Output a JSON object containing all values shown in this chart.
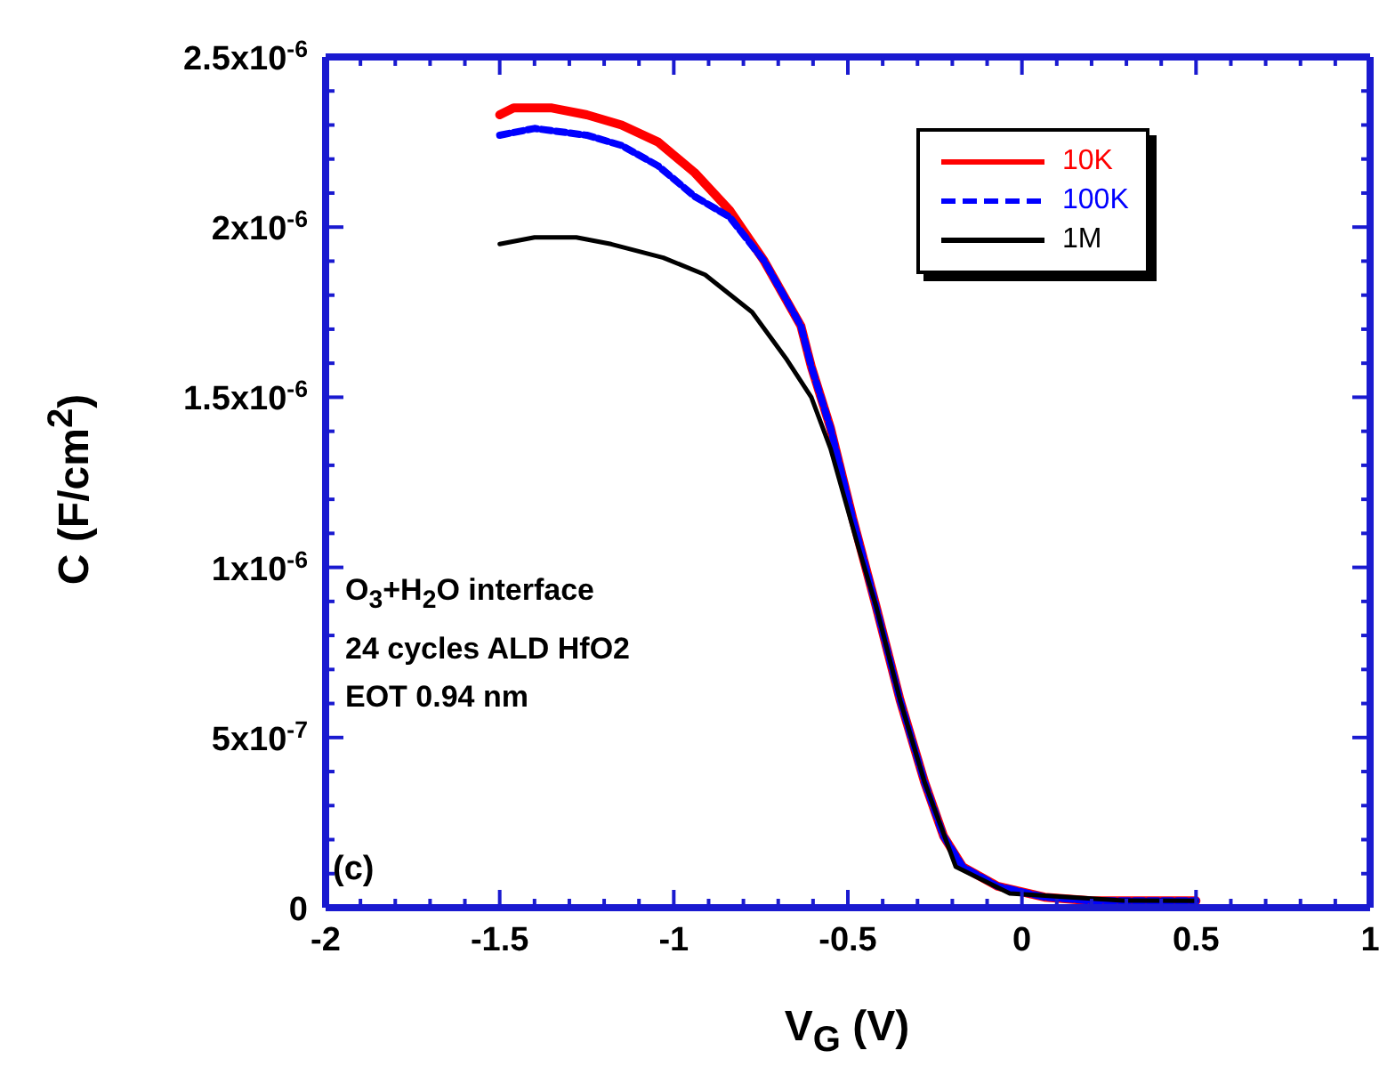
{
  "chart_data": {
    "type": "line",
    "xlabel": "V$_{G}$ (V)",
    "ylabel": "C (F/cm$^{2}$)",
    "xlim": [
      -2,
      1
    ],
    "ylim": [
      0,
      2.5e-06
    ],
    "xticks": [
      -2,
      {
        "value": -1.9,
        "label": null
      },
      {
        "value": -1.8,
        "label": null
      },
      {
        "value": -1.7,
        "label": null
      },
      {
        "value": -1.6,
        "label": null
      },
      -1.5,
      {
        "value": -1.4,
        "label": null
      },
      {
        "value": -1.3,
        "label": null
      },
      {
        "value": -1.2,
        "label": null
      },
      {
        "value": -1.1,
        "label": null
      },
      -1,
      {
        "value": -0.9,
        "label": null
      },
      {
        "value": -0.8,
        "label": null
      },
      {
        "value": -0.7,
        "label": null
      },
      {
        "value": -0.6,
        "label": null
      },
      -0.5,
      {
        "value": -0.4,
        "label": null
      },
      {
        "value": -0.3,
        "label": null
      },
      {
        "value": -0.2,
        "label": null
      },
      {
        "value": -0.1,
        "label": null
      },
      0,
      {
        "value": 0.1,
        "label": null
      },
      {
        "value": 0.2,
        "label": null
      },
      {
        "value": 0.3,
        "label": null
      },
      {
        "value": 0.4,
        "label": null
      },
      0.5,
      {
        "value": 0.6,
        "label": null
      },
      {
        "value": 0.7,
        "label": null
      },
      {
        "value": 0.8,
        "label": null
      },
      {
        "value": 0.9,
        "label": null
      },
      1
    ],
    "yticks": [
      0,
      {
        "value": 1e-07,
        "label": null
      },
      {
        "value": 2e-07,
        "label": null
      },
      {
        "value": 3e-07,
        "label": null
      },
      {
        "value": 4e-07,
        "label": null
      },
      {
        "value": 5e-07,
        "label": "5x10$^{-7}$"
      },
      {
        "value": 6e-07,
        "label": null
      },
      {
        "value": 7e-07,
        "label": null
      },
      {
        "value": 8e-07,
        "label": null
      },
      {
        "value": 9e-07,
        "label": null
      },
      {
        "value": 1e-06,
        "label": "1x10$^{-6}$"
      },
      {
        "value": 1.1e-06,
        "label": null
      },
      {
        "value": 1.2e-06,
        "label": null
      },
      {
        "value": 1.3e-06,
        "label": null
      },
      {
        "value": 1.4e-06,
        "label": null
      },
      {
        "value": 1.5e-06,
        "label": "1.5x10$^{-6}$"
      },
      {
        "value": 1.6e-06,
        "label": null
      },
      {
        "value": 1.7e-06,
        "label": null
      },
      {
        "value": 1.8e-06,
        "label": null
      },
      {
        "value": 1.9e-06,
        "label": null
      },
      {
        "value": 2e-06,
        "label": "2x10$^{-6}$"
      },
      {
        "value": 2.1e-06,
        "label": null
      },
      {
        "value": 2.2e-06,
        "label": null
      },
      {
        "value": 2.3e-06,
        "label": null
      },
      {
        "value": 2.4e-06,
        "label": null
      },
      {
        "value": 2.5e-06,
        "label": "2.5x10$^{-6}$"
      }
    ],
    "legend": "top right",
    "marker": "none",
    "annotations": [
      "O$_{3}$+H$_{2}$O interface",
      "24 cycles ALD HfO2",
      "EOT 0.94 nm",
      "(c)"
    ],
    "series": [
      {
        "name": "10K",
        "color": "#ff0000",
        "line_style": "solid",
        "x": [
          -1.5,
          -1.46,
          -1.35,
          -1.25,
          -1.15,
          -1.045,
          -0.94,
          -0.84,
          -0.74,
          -0.635,
          -0.605,
          -0.55,
          -0.485,
          -0.42,
          -0.35,
          -0.28,
          -0.225,
          -0.17,
          -0.07,
          0.065,
          0.2,
          0.5
        ],
        "values": [
          2.33e-06,
          2.35e-06,
          2.35e-06,
          2.33e-06,
          2.3e-06,
          2.25e-06,
          2.16e-06,
          2.05e-06,
          1.9e-06,
          1.71e-06,
          1.59e-06,
          1.41e-06,
          1.14e-06,
          8.9e-07,
          6.1e-07,
          3.7e-07,
          2.1e-07,
          1.2e-07,
          6.3e-08,
          3.1e-08,
          2e-08,
          2e-08
        ]
      },
      {
        "name": "100K",
        "color": "#0000ff",
        "line_style": "dashed",
        "x": [
          -1.5,
          -1.4,
          -1.25,
          -1.15,
          -1.045,
          -0.94,
          -0.84,
          -0.74,
          -0.635,
          -0.605,
          -0.55,
          -0.485,
          -0.42,
          -0.35,
          -0.28,
          -0.225,
          -0.17,
          -0.07,
          0.065,
          0.2,
          0.5
        ],
        "values": [
          2.27e-06,
          2.29e-06,
          2.27e-06,
          2.24e-06,
          2.18e-06,
          2.09e-06,
          2.03e-06,
          1.9e-06,
          1.71e-06,
          1.59e-06,
          1.41e-06,
          1.14e-06,
          8.9e-07,
          6.1e-07,
          3.7e-07,
          2.1e-07,
          1.2e-07,
          6.3e-08,
          3.1e-08,
          2e-08,
          2e-08
        ]
      },
      {
        "name": "1M",
        "color": "#000000",
        "line_style": "solid",
        "x": [
          -1.5,
          -1.4,
          -1.28,
          -1.18,
          -1.03,
          -0.91,
          -0.775,
          -0.675,
          -0.605,
          -0.55,
          -0.47,
          -0.42,
          -0.35,
          -0.28,
          -0.19,
          -0.035,
          0.29,
          0.5
        ],
        "values": [
          1.95e-06,
          1.97e-06,
          1.97e-06,
          1.95e-06,
          1.91e-06,
          1.86e-06,
          1.75e-06,
          1.61e-06,
          1.5e-06,
          1.35e-06,
          1.06e-06,
          8.9e-07,
          6.1e-07,
          3.7e-07,
          1.2e-07,
          4.2e-08,
          2.1e-08,
          2e-08
        ]
      }
    ]
  }
}
